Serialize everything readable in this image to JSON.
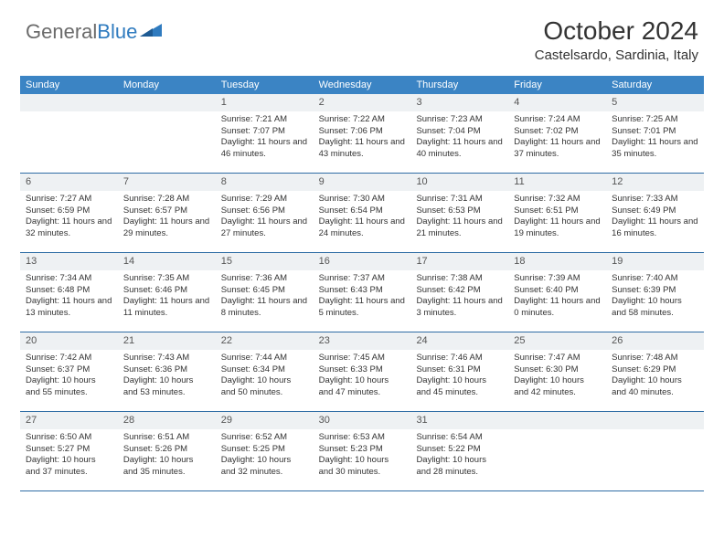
{
  "brand": {
    "part1": "General",
    "part2": "Blue"
  },
  "title": "October 2024",
  "location": "Castelsardo, Sardinia, Italy",
  "colors": {
    "header_bg": "#3b84c4",
    "header_text": "#ffffff",
    "daynum_bg": "#eef1f3",
    "row_border": "#2f6da5",
    "body_text": "#333333",
    "logo_gray": "#6b6b6b",
    "logo_blue": "#2f7bbf"
  },
  "weekdays": [
    "Sunday",
    "Monday",
    "Tuesday",
    "Wednesday",
    "Thursday",
    "Friday",
    "Saturday"
  ],
  "weeks": [
    [
      {
        "empty": true
      },
      {
        "empty": true
      },
      {
        "num": "1",
        "sunrise": "Sunrise: 7:21 AM",
        "sunset": "Sunset: 7:07 PM",
        "daylight": "Daylight: 11 hours and 46 minutes."
      },
      {
        "num": "2",
        "sunrise": "Sunrise: 7:22 AM",
        "sunset": "Sunset: 7:06 PM",
        "daylight": "Daylight: 11 hours and 43 minutes."
      },
      {
        "num": "3",
        "sunrise": "Sunrise: 7:23 AM",
        "sunset": "Sunset: 7:04 PM",
        "daylight": "Daylight: 11 hours and 40 minutes."
      },
      {
        "num": "4",
        "sunrise": "Sunrise: 7:24 AM",
        "sunset": "Sunset: 7:02 PM",
        "daylight": "Daylight: 11 hours and 37 minutes."
      },
      {
        "num": "5",
        "sunrise": "Sunrise: 7:25 AM",
        "sunset": "Sunset: 7:01 PM",
        "daylight": "Daylight: 11 hours and 35 minutes."
      }
    ],
    [
      {
        "num": "6",
        "sunrise": "Sunrise: 7:27 AM",
        "sunset": "Sunset: 6:59 PM",
        "daylight": "Daylight: 11 hours and 32 minutes."
      },
      {
        "num": "7",
        "sunrise": "Sunrise: 7:28 AM",
        "sunset": "Sunset: 6:57 PM",
        "daylight": "Daylight: 11 hours and 29 minutes."
      },
      {
        "num": "8",
        "sunrise": "Sunrise: 7:29 AM",
        "sunset": "Sunset: 6:56 PM",
        "daylight": "Daylight: 11 hours and 27 minutes."
      },
      {
        "num": "9",
        "sunrise": "Sunrise: 7:30 AM",
        "sunset": "Sunset: 6:54 PM",
        "daylight": "Daylight: 11 hours and 24 minutes."
      },
      {
        "num": "10",
        "sunrise": "Sunrise: 7:31 AM",
        "sunset": "Sunset: 6:53 PM",
        "daylight": "Daylight: 11 hours and 21 minutes."
      },
      {
        "num": "11",
        "sunrise": "Sunrise: 7:32 AM",
        "sunset": "Sunset: 6:51 PM",
        "daylight": "Daylight: 11 hours and 19 minutes."
      },
      {
        "num": "12",
        "sunrise": "Sunrise: 7:33 AM",
        "sunset": "Sunset: 6:49 PM",
        "daylight": "Daylight: 11 hours and 16 minutes."
      }
    ],
    [
      {
        "num": "13",
        "sunrise": "Sunrise: 7:34 AM",
        "sunset": "Sunset: 6:48 PM",
        "daylight": "Daylight: 11 hours and 13 minutes."
      },
      {
        "num": "14",
        "sunrise": "Sunrise: 7:35 AM",
        "sunset": "Sunset: 6:46 PM",
        "daylight": "Daylight: 11 hours and 11 minutes."
      },
      {
        "num": "15",
        "sunrise": "Sunrise: 7:36 AM",
        "sunset": "Sunset: 6:45 PM",
        "daylight": "Daylight: 11 hours and 8 minutes."
      },
      {
        "num": "16",
        "sunrise": "Sunrise: 7:37 AM",
        "sunset": "Sunset: 6:43 PM",
        "daylight": "Daylight: 11 hours and 5 minutes."
      },
      {
        "num": "17",
        "sunrise": "Sunrise: 7:38 AM",
        "sunset": "Sunset: 6:42 PM",
        "daylight": "Daylight: 11 hours and 3 minutes."
      },
      {
        "num": "18",
        "sunrise": "Sunrise: 7:39 AM",
        "sunset": "Sunset: 6:40 PM",
        "daylight": "Daylight: 11 hours and 0 minutes."
      },
      {
        "num": "19",
        "sunrise": "Sunrise: 7:40 AM",
        "sunset": "Sunset: 6:39 PM",
        "daylight": "Daylight: 10 hours and 58 minutes."
      }
    ],
    [
      {
        "num": "20",
        "sunrise": "Sunrise: 7:42 AM",
        "sunset": "Sunset: 6:37 PM",
        "daylight": "Daylight: 10 hours and 55 minutes."
      },
      {
        "num": "21",
        "sunrise": "Sunrise: 7:43 AM",
        "sunset": "Sunset: 6:36 PM",
        "daylight": "Daylight: 10 hours and 53 minutes."
      },
      {
        "num": "22",
        "sunrise": "Sunrise: 7:44 AM",
        "sunset": "Sunset: 6:34 PM",
        "daylight": "Daylight: 10 hours and 50 minutes."
      },
      {
        "num": "23",
        "sunrise": "Sunrise: 7:45 AM",
        "sunset": "Sunset: 6:33 PM",
        "daylight": "Daylight: 10 hours and 47 minutes."
      },
      {
        "num": "24",
        "sunrise": "Sunrise: 7:46 AM",
        "sunset": "Sunset: 6:31 PM",
        "daylight": "Daylight: 10 hours and 45 minutes."
      },
      {
        "num": "25",
        "sunrise": "Sunrise: 7:47 AM",
        "sunset": "Sunset: 6:30 PM",
        "daylight": "Daylight: 10 hours and 42 minutes."
      },
      {
        "num": "26",
        "sunrise": "Sunrise: 7:48 AM",
        "sunset": "Sunset: 6:29 PM",
        "daylight": "Daylight: 10 hours and 40 minutes."
      }
    ],
    [
      {
        "num": "27",
        "sunrise": "Sunrise: 6:50 AM",
        "sunset": "Sunset: 5:27 PM",
        "daylight": "Daylight: 10 hours and 37 minutes."
      },
      {
        "num": "28",
        "sunrise": "Sunrise: 6:51 AM",
        "sunset": "Sunset: 5:26 PM",
        "daylight": "Daylight: 10 hours and 35 minutes."
      },
      {
        "num": "29",
        "sunrise": "Sunrise: 6:52 AM",
        "sunset": "Sunset: 5:25 PM",
        "daylight": "Daylight: 10 hours and 32 minutes."
      },
      {
        "num": "30",
        "sunrise": "Sunrise: 6:53 AM",
        "sunset": "Sunset: 5:23 PM",
        "daylight": "Daylight: 10 hours and 30 minutes."
      },
      {
        "num": "31",
        "sunrise": "Sunrise: 6:54 AM",
        "sunset": "Sunset: 5:22 PM",
        "daylight": "Daylight: 10 hours and 28 minutes."
      },
      {
        "empty": true
      },
      {
        "empty": true
      }
    ]
  ]
}
